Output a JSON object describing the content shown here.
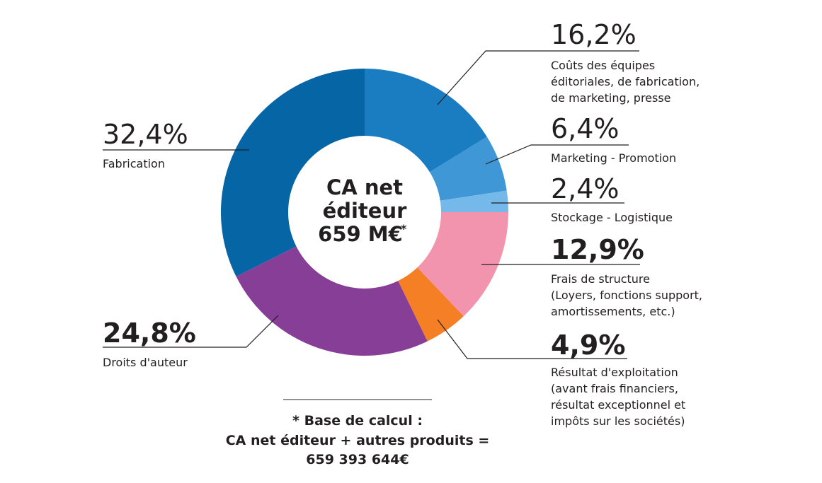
{
  "chart_data": {
    "type": "pie",
    "subtype": "donut",
    "center_label": {
      "lines": [
        "CA net",
        "éditeur",
        "659 M€"
      ],
      "asterisk": "*"
    },
    "slices": [
      {
        "key": "equipes",
        "value_label": "16,2%",
        "value": 16.2,
        "bold": false,
        "color": "#1a7cc1",
        "label_lines": [
          "Coûts des équipes",
          "éditoriales, de fabrication,",
          "de marketing, presse"
        ]
      },
      {
        "key": "marketing",
        "value_label": "6,4%",
        "value": 6.4,
        "bold": false,
        "color": "#3f97d6",
        "label_lines": [
          "Marketing - Promotion"
        ]
      },
      {
        "key": "stockage",
        "value_label": "2,4%",
        "value": 2.4,
        "bold": false,
        "color": "#75b8ea",
        "label_lines": [
          "Stockage - Logistique"
        ]
      },
      {
        "key": "structure",
        "value_label": "12,9%",
        "value": 12.9,
        "bold": true,
        "color": "#f394ae",
        "label_lines": [
          "Frais de structure",
          "(Loyers, fonctions support,",
          "amortissements, etc.)"
        ]
      },
      {
        "key": "resultat",
        "value_label": "4,9%",
        "value": 4.9,
        "bold": true,
        "color": "#f47f24",
        "label_lines": [
          "Résultat d'exploitation",
          "(avant frais financiers,",
          "résultat exceptionnel et",
          "impôts sur les sociétés)"
        ]
      },
      {
        "key": "droits",
        "value_label": "24,8%",
        "value": 24.8,
        "bold": true,
        "color": "#873e96",
        "label_lines": [
          "Droits d'auteur"
        ]
      },
      {
        "key": "fabrication",
        "value_label": "32,4%",
        "value": 32.4,
        "bold": false,
        "color": "#0565a5",
        "label_lines": [
          "Fabrication"
        ]
      }
    ],
    "footnote": {
      "lines": [
        "* Base de calcul :",
        "CA net éditeur + autres produits =",
        "659 393 644€"
      ]
    }
  }
}
